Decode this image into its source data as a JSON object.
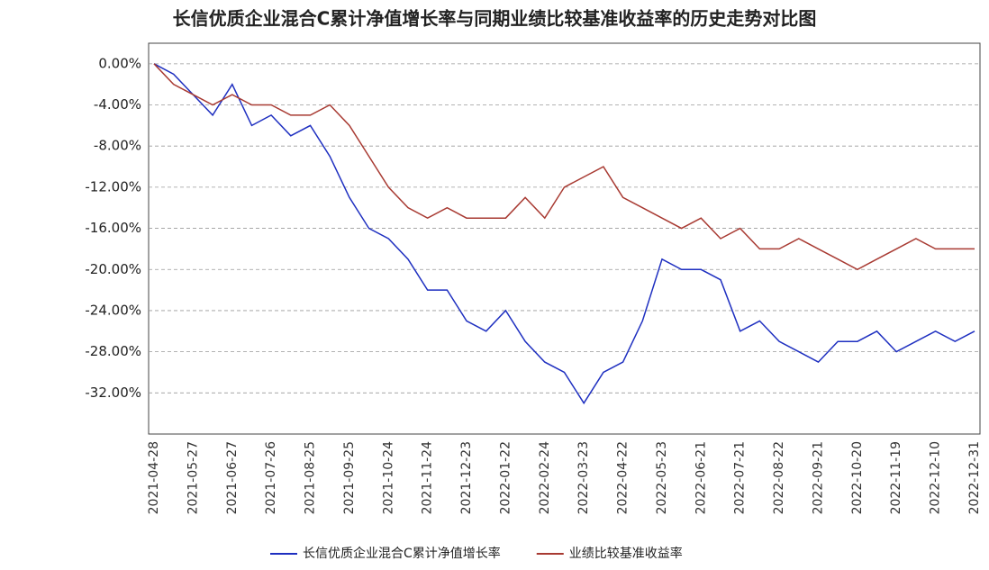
{
  "chart_data": {
    "type": "line",
    "title": "长信优质企业混合C累计净值增长率与同期业绩比较基准收益率的历史走势对比图",
    "categories": [
      "2021-04-28",
      null,
      "2021-05-27",
      null,
      "2021-06-27",
      null,
      "2021-07-26",
      null,
      "2021-08-25",
      null,
      "2021-09-25",
      null,
      "2021-10-24",
      null,
      "2021-11-24",
      null,
      "2021-12-23",
      null,
      "2022-01-22",
      null,
      "2022-02-24",
      null,
      "2022-03-23",
      null,
      "2022-04-22",
      null,
      "2022-05-23",
      null,
      "2022-06-21",
      null,
      "2022-07-21",
      null,
      "2022-08-22",
      null,
      "2022-09-21",
      null,
      "2022-10-20",
      null,
      "2022-11-19",
      null,
      "2022-12-10",
      null,
      "2022-12-31"
    ],
    "series": [
      {
        "name": "长信优质企业混合C累计净值增长率",
        "color": "#1e2fc0",
        "values": [
          0,
          -1,
          -3,
          -5,
          -2,
          -6,
          -5,
          -7,
          -6,
          -9,
          -13,
          -16,
          -17,
          -19,
          -22,
          -22,
          -25,
          -26,
          -24,
          -27,
          -29,
          -30,
          -33,
          -30,
          -29,
          -25,
          -19,
          -20,
          -20,
          -21,
          -26,
          -25,
          -27,
          -28,
          -29,
          -27,
          -27,
          -26,
          -28,
          -27,
          -26,
          -27,
          -26
        ]
      },
      {
        "name": "业绩比较基准收益率",
        "color": "#a83a32",
        "values": [
          0,
          -2,
          -3,
          -4,
          -3,
          -4,
          -4,
          -5,
          -5,
          -4,
          -6,
          -9,
          -12,
          -14,
          -15,
          -14,
          -15,
          -15,
          -15,
          -13,
          -15,
          -12,
          -11,
          -10,
          -13,
          -14,
          -15,
          -16,
          -15,
          -17,
          -16,
          -18,
          -18,
          -17,
          -18,
          -19,
          -20,
          -19,
          -18,
          -17,
          -18,
          -18,
          -18
        ]
      }
    ],
    "ylim": [
      -36,
      2
    ],
    "yticks": [
      {
        "value": 0,
        "label": "0.00%"
      },
      {
        "value": -4,
        "label": "-4.00%"
      },
      {
        "value": -8,
        "label": "-8.00%"
      },
      {
        "value": -12,
        "label": "-12.00%"
      },
      {
        "value": -16,
        "label": "-16.00%"
      },
      {
        "value": -20,
        "label": "-20.00%"
      },
      {
        "value": -24,
        "label": "-24.00%"
      },
      {
        "value": -28,
        "label": "-28.00%"
      },
      {
        "value": -32,
        "label": "-32.00%"
      }
    ],
    "grid": true
  }
}
